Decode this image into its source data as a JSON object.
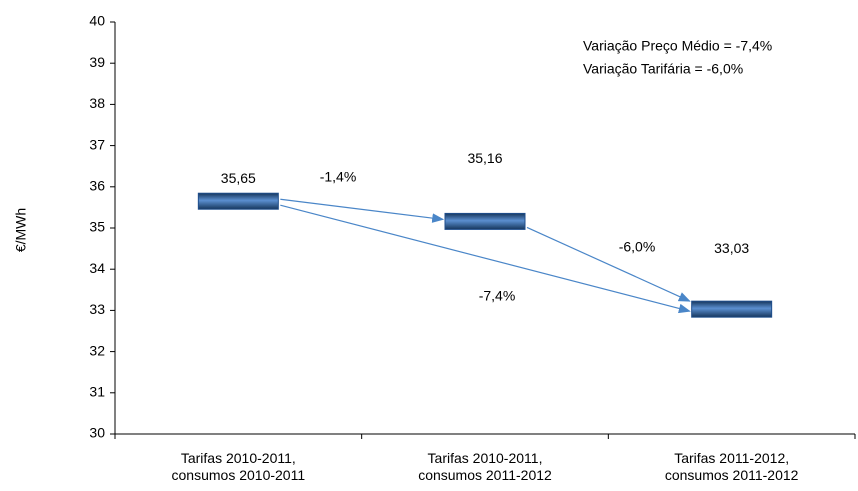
{
  "chart_data": {
    "type": "floating-bar",
    "y_label": "€/MWh",
    "categories": [
      "Tarifas 2010-2011, consumos 2010-2011",
      "Tarifas 2010-2011, consumos 2011-2012",
      "Tarifas 2011-2012, consumos 2011-2012"
    ],
    "values": [
      35.65,
      35.16,
      33.03
    ],
    "value_labels": [
      "35,65",
      "35,16",
      "33,03"
    ],
    "color": "#1f4e8c",
    "ylim": [
      30,
      40
    ],
    "yticks": [
      30,
      31,
      32,
      33,
      34,
      35,
      36,
      37,
      38,
      39,
      40
    ],
    "annotations": [
      "-1,4%",
      "-6,0%",
      "-7,4%"
    ],
    "notes": [
      "Variação Preço Médio =  -7,4%",
      "Variação Tarifária = -6,0%"
    ],
    "arrow_color": "#4a86c8"
  }
}
